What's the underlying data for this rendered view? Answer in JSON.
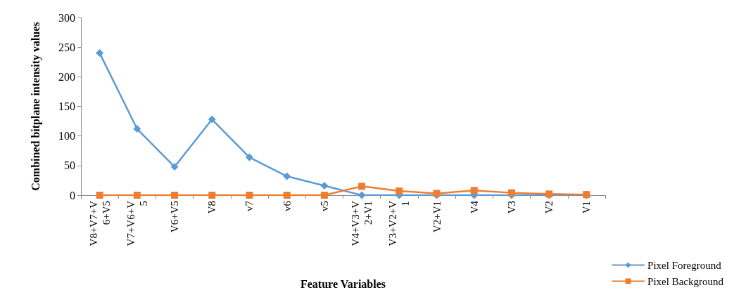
{
  "chart_data": {
    "type": "line",
    "xlabel": "Feature Variables",
    "ylabel": "Combined bitplane intensity values",
    "categories": [
      "V8+V7+V6+V5",
      "V7+V6+V5",
      "V6+V5",
      "V8",
      "v7",
      "v6",
      "v5",
      "V4+V3+V2+V1",
      "V3+V2+V1",
      "V2+V1",
      "V4",
      "V3",
      "V2",
      "V1"
    ],
    "series": [
      {
        "name": "Pixel Foreground",
        "color": "#5b9bd5",
        "marker": "diamond",
        "values": [
          240,
          112,
          48,
          128,
          64,
          32,
          16,
          0,
          0,
          0,
          0,
          0,
          0,
          0
        ]
      },
      {
        "name": "Pixel Background",
        "color": "#ed7d31",
        "marker": "square",
        "values": [
          0,
          0,
          0,
          0,
          0,
          0,
          0,
          15,
          7,
          3,
          8,
          4,
          2,
          1
        ]
      }
    ],
    "ylim": [
      0,
      300
    ],
    "yticks": [
      0,
      50,
      100,
      150,
      200,
      250,
      300
    ],
    "grid": false,
    "legend": "bottom right"
  }
}
